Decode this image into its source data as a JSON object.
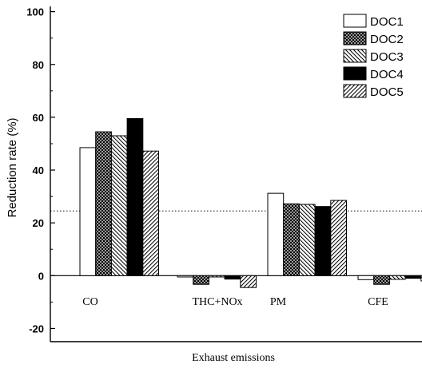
{
  "chart_data": {
    "type": "bar",
    "title": "",
    "xlabel": "Exhaust emissions",
    "ylabel": "Reduction rate (%)",
    "categories": [
      "CO",
      "THC+NOx",
      "PM",
      "CFE"
    ],
    "ylim": [
      -25,
      102
    ],
    "yticks": [
      -20,
      0,
      20,
      40,
      60,
      80,
      100
    ],
    "series": [
      {
        "name": "DOC1",
        "values": [
          48.5,
          -0.5,
          31.2,
          -1.5
        ]
      },
      {
        "name": "DOC2",
        "values": [
          54.5,
          -3.3,
          27.2,
          -3.3
        ]
      },
      {
        "name": "DOC3",
        "values": [
          53.0,
          -0.5,
          27.0,
          -1.4
        ]
      },
      {
        "name": "DOC4",
        "values": [
          59.5,
          -1.3,
          26.2,
          -1.0
        ]
      },
      {
        "name": "DOC5",
        "values": [
          47.2,
          -4.5,
          28.5,
          -2.0
        ]
      }
    ],
    "reference_line": {
      "y": 24.5,
      "style": "dotted"
    },
    "zero_line": true,
    "legend": "top-right",
    "grid": false
  }
}
